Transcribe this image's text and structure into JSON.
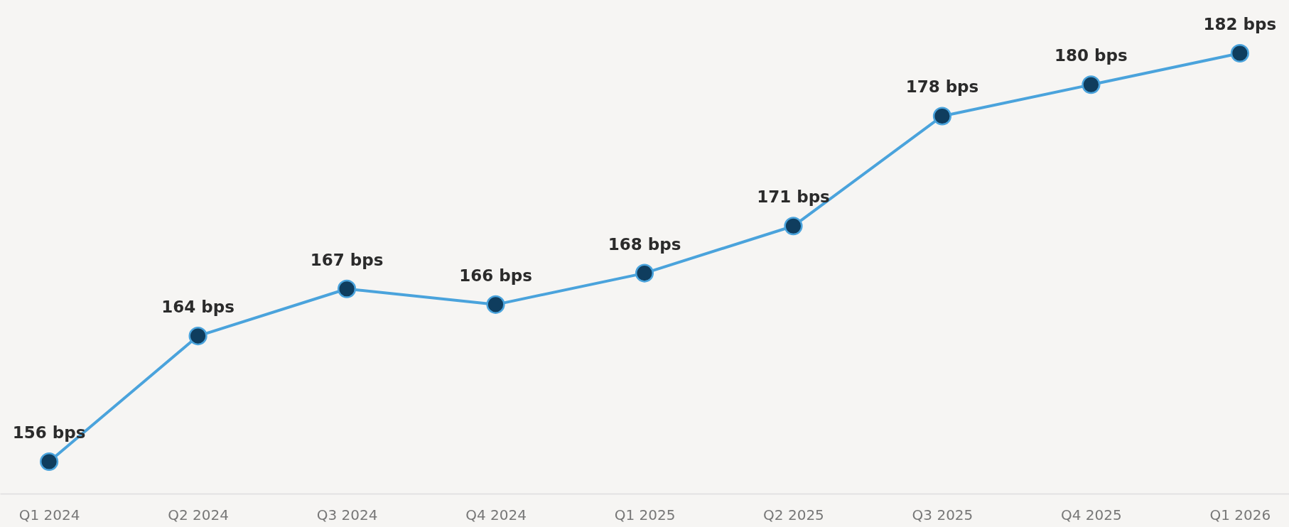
{
  "chart_data": {
    "type": "line",
    "categories": [
      "Q1 2024",
      "Q2 2024",
      "Q3 2024",
      "Q4 2024",
      "Q1 2025",
      "Q2 2025",
      "Q3 2025",
      "Q4 2025",
      "Q1 2026"
    ],
    "series": [
      {
        "color": "#4aa3dc",
        "values": [
          156,
          164,
          167,
          166,
          168,
          171,
          178,
          180,
          182
        ],
        "value_labels": [
          "156 bps",
          "164 bps",
          "167 bps",
          "166 bps",
          "168 bps",
          "171 bps",
          "178 bps",
          "180 bps",
          "182 bps"
        ]
      }
    ],
    "marker": "circle",
    "line_style": "solid",
    "grid": false,
    "tick_labels": "x"
  }
}
